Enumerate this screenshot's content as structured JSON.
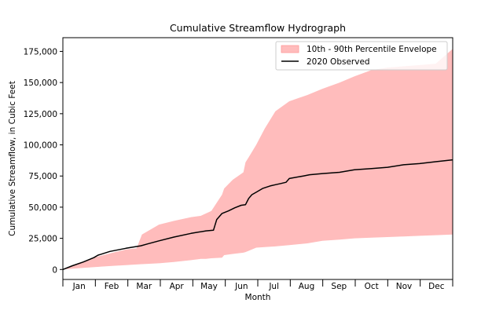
{
  "chart_data": {
    "type": "area",
    "title": "Cumulative Streamflow Hydrograph",
    "xlabel": "Month",
    "ylabel": "Cumulative Streamflow, in Cubic Feet",
    "x_ticks": [
      "Jan",
      "Feb",
      "Mar",
      "Apr",
      "May",
      "Jun",
      "Jul",
      "Aug",
      "Sep",
      "Oct",
      "Nov",
      "Dec"
    ],
    "xlim": [
      1,
      366
    ],
    "ylim": [
      -8000,
      186000
    ],
    "y_ticks": [
      0,
      25000,
      50000,
      75000,
      100000,
      125000,
      150000,
      175000
    ],
    "y_tick_labels": [
      "0",
      "25,000",
      "50,000",
      "75,000",
      "100,000",
      "125,000",
      "150,000",
      "175,000"
    ],
    "legend_position": "top-right",
    "grid": false,
    "colors": {
      "envelope_fill": "#ffbcbc",
      "observed_line": "#000000"
    },
    "series": [
      {
        "name": "10th - 90th Percentile Envelope",
        "kind": "band",
        "x": [
          1,
          15,
          32,
          50,
          60,
          70,
          75,
          91,
          105,
          121,
          130,
          135,
          140,
          150,
          152,
          160,
          170,
          172,
          175,
          182,
          190,
          200,
          213,
          230,
          244,
          260,
          274,
          290,
          305,
          320,
          335,
          350,
          366
        ],
        "lower": [
          0,
          1000,
          2000,
          3000,
          3500,
          4000,
          4300,
          5000,
          6000,
          7500,
          8500,
          8500,
          9000,
          9500,
          11500,
          12500,
          13500,
          14000,
          15000,
          17500,
          18000,
          18500,
          19500,
          21000,
          23000,
          24000,
          25000,
          25500,
          26000,
          26500,
          27000,
          27500,
          28000
        ],
        "upper": [
          0,
          5000,
          10000,
          14000,
          16000,
          17000,
          28000,
          36000,
          39000,
          42000,
          43000,
          45000,
          47000,
          60000,
          65000,
          72000,
          78000,
          86000,
          90000,
          100000,
          113000,
          127000,
          135000,
          140000,
          145000,
          150000,
          155000,
          160000,
          162000,
          163000,
          164000,
          165000,
          177000
        ]
      },
      {
        "name": "2020 Observed",
        "kind": "line",
        "x": [
          1,
          10,
          20,
          30,
          34,
          36,
          45,
          60,
          74,
          80,
          91,
          105,
          121,
          135,
          142,
          145,
          150,
          156,
          162,
          168,
          172,
          175,
          178,
          182,
          188,
          195,
          200,
          205,
          210,
          213,
          226,
          232,
          244,
          260,
          274,
          290,
          305,
          320,
          335,
          350,
          366
        ],
        "y": [
          0,
          3000,
          6000,
          9500,
          11500,
          12000,
          14500,
          17000,
          19000,
          20500,
          23000,
          26000,
          29000,
          31000,
          31500,
          40000,
          45000,
          47000,
          49500,
          51500,
          52000,
          57000,
          60000,
          62000,
          65000,
          67000,
          68000,
          69000,
          70000,
          73000,
          75000,
          76000,
          77000,
          78000,
          80000,
          81000,
          82000,
          84000,
          85000,
          86500,
          88000
        ]
      }
    ]
  }
}
